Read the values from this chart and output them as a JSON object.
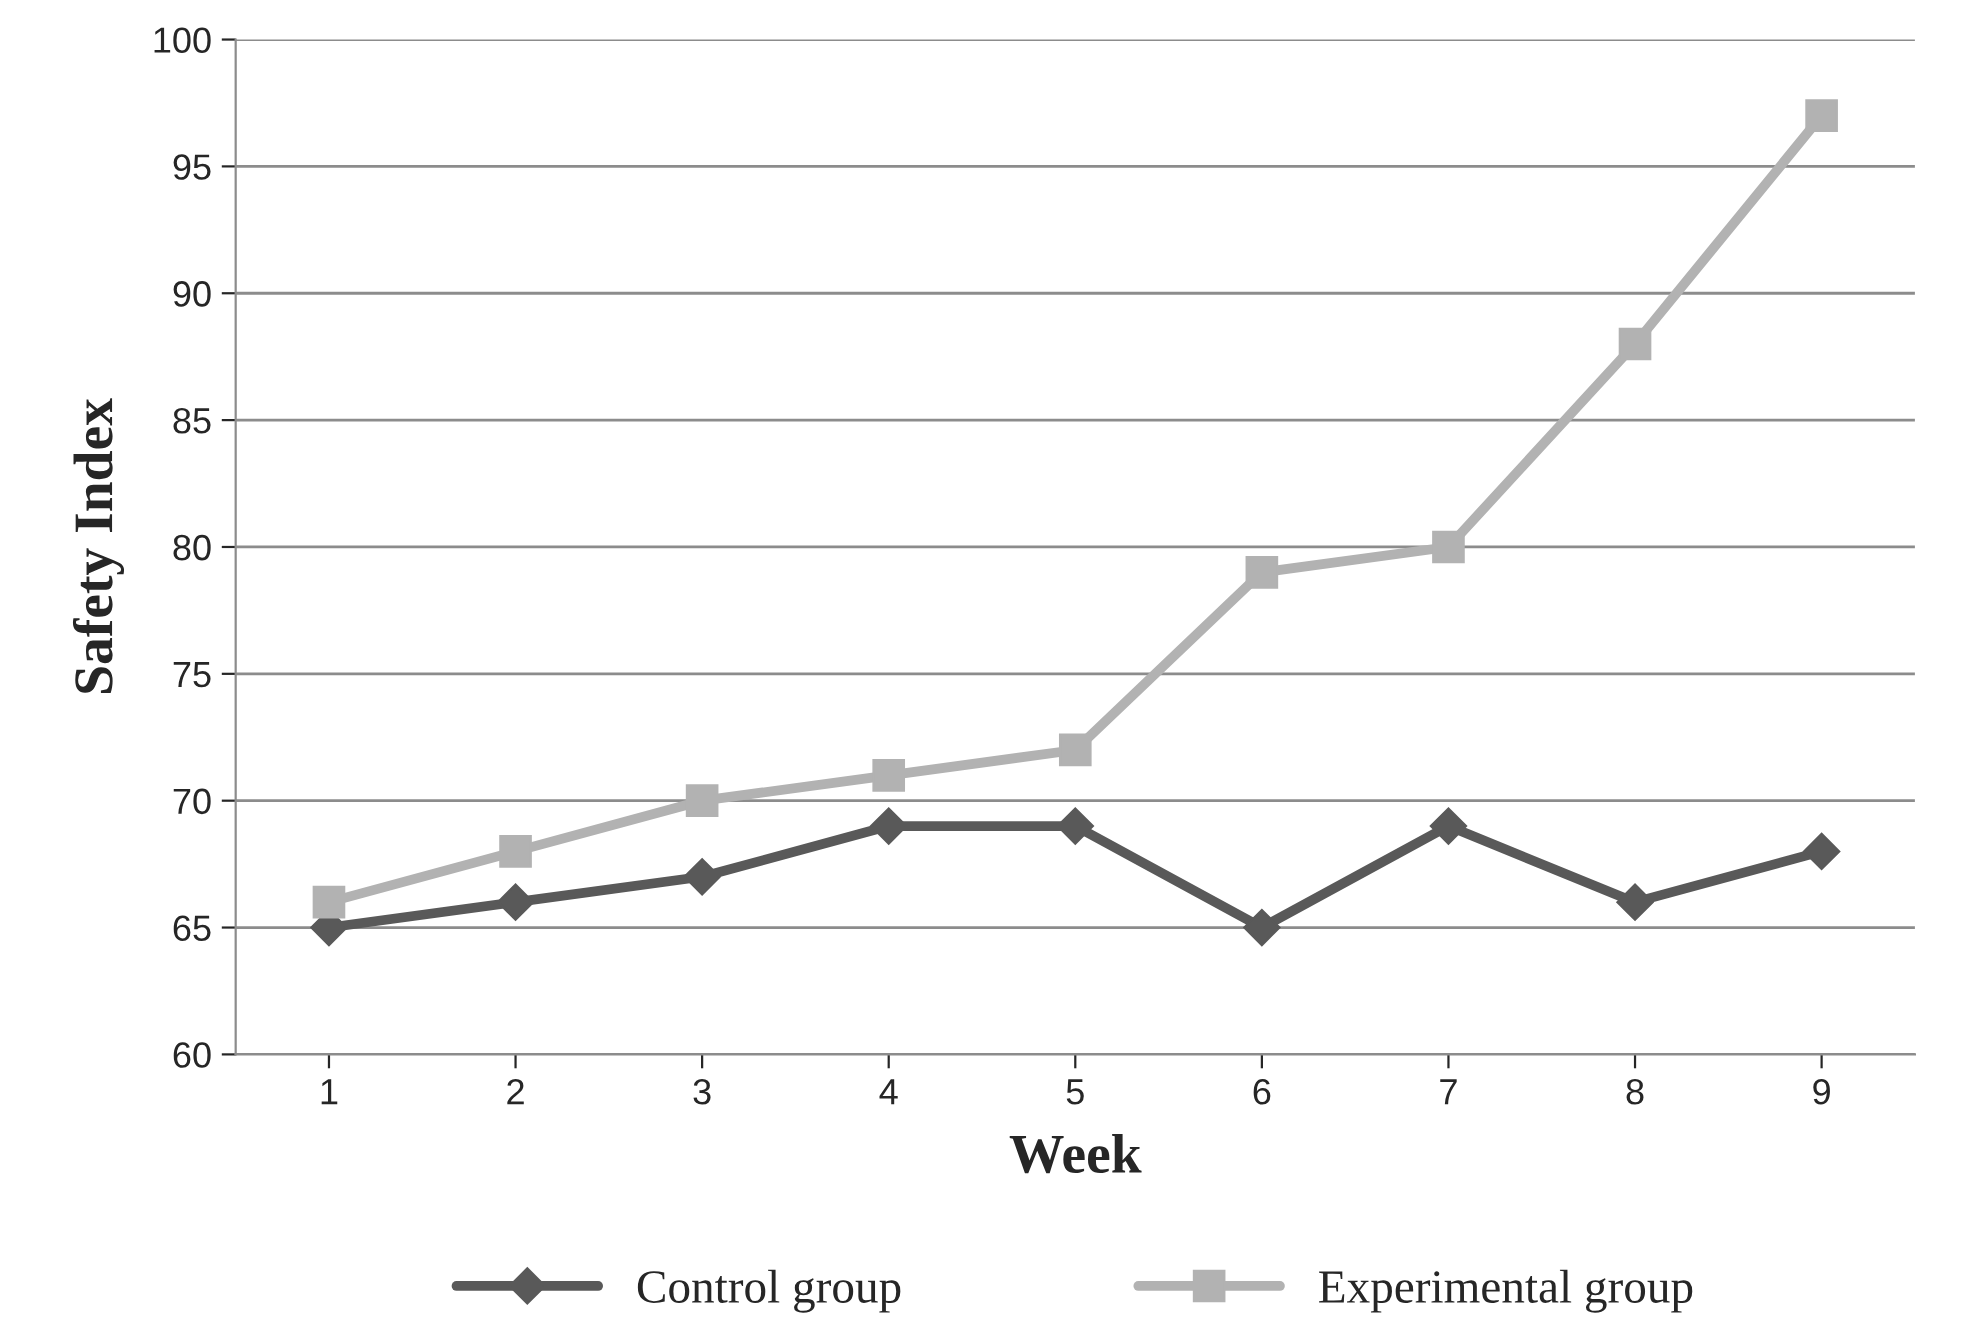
{
  "chart_data": {
    "type": "line",
    "xlabel": "Week",
    "ylabel": "Safety Index",
    "categories": [
      "1",
      "2",
      "3",
      "4",
      "5",
      "6",
      "7",
      "8",
      "9"
    ],
    "series": [
      {
        "name": "Control group",
        "color": "#595959",
        "marker": "diamond",
        "values": [
          65,
          66,
          67,
          69,
          69,
          65,
          69,
          66,
          68
        ]
      },
      {
        "name": "Experimental group",
        "color": "#b2b2b2",
        "marker": "square",
        "values": [
          66,
          68,
          70,
          71,
          72,
          79,
          80,
          88,
          97
        ]
      }
    ],
    "ylim": [
      60,
      100
    ],
    "yticks": [
      60,
      65,
      70,
      75,
      80,
      85,
      90,
      95,
      100
    ],
    "grid": "y",
    "legend": "bottom",
    "line_style": "solid"
  }
}
